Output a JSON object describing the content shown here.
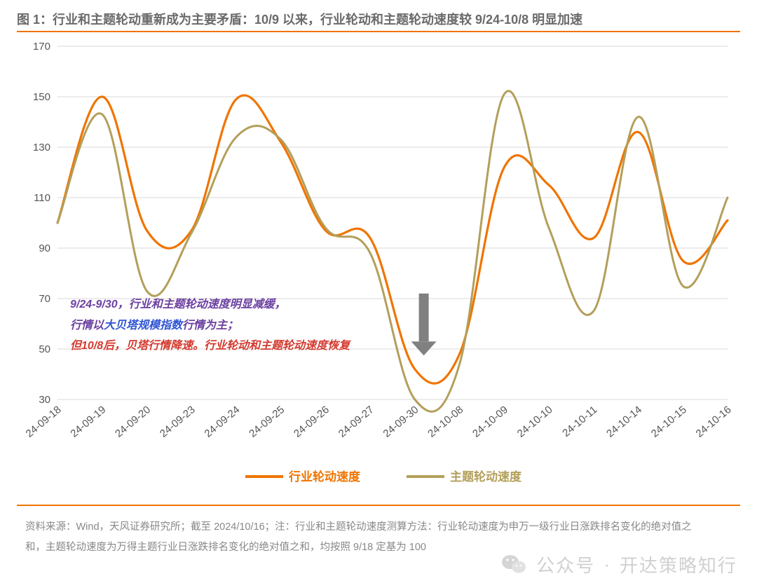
{
  "title": "图 1：行业和主题轮动重新成为主要矛盾：10/9 以来，行业轮动和主题轮动速度较 9/24-10/8 明显加速",
  "title_color": "#6a6a6a",
  "accent_color": "#f07400",
  "chart": {
    "type": "line",
    "series": [
      {
        "name": "行业轮动速度",
        "color": "#f07400",
        "line_width": 3.2,
        "values": [
          100,
          150,
          97,
          97,
          149,
          132,
          97,
          94,
          42,
          48,
          122,
          115,
          94,
          136,
          85,
          101
        ]
      },
      {
        "name": "主题轮动速度",
        "color": "#b39f5a",
        "line_width": 3.0,
        "values": [
          100,
          143,
          73,
          96,
          134,
          133,
          98,
          88,
          30,
          44,
          151,
          98,
          65,
          142,
          75,
          110
        ]
      }
    ],
    "x_labels": [
      "24-09-18",
      "24-09-19",
      "24-09-20",
      "24-09-23",
      "24-09-24",
      "24-09-25",
      "24-09-26",
      "24-09-27",
      "24-09-30",
      "24-10-08",
      "24-10-09",
      "24-10-10",
      "24-10-11",
      "24-10-14",
      "24-10-15",
      "24-10-16"
    ],
    "ylim": [
      30,
      170
    ],
    "ytick_step": 20,
    "background_color": "#ffffff",
    "grid_color": "#d9d9d9",
    "grid_width": 1,
    "axis_text_color": "#555555",
    "axis_font_size": 15,
    "x_tick_rotation": -40,
    "legend": {
      "position": "bottom-center",
      "font_size": 17,
      "font_weight": "bold"
    },
    "annotation_arrow": {
      "x_index": 8.2,
      "y_from": 72,
      "y_to": 48,
      "color": "#808080"
    }
  },
  "annotations": {
    "line1": {
      "text": "9/24-9/30，行业和主题轮动速度明显减缓，",
      "color": "#6b3fa0"
    },
    "line2_prefix": {
      "text": "行情以",
      "color": "#6b3fa0"
    },
    "line2_emph": {
      "text": "大贝塔规模指数",
      "color": "#2f55d4"
    },
    "line2_suffix": {
      "text": "行情为主；",
      "color": "#6b3fa0"
    },
    "line3": {
      "text": "但10/8后，贝塔行情降速。行业轮动和主题轮动速度恢复",
      "color": "#d43a2f"
    }
  },
  "footnote_line1": "资料来源：Wind，天风证券研究所；截至 2024/10/16；注：行业和主题轮动速度测算方法：行业轮动速度为申万一级行业日涨跌排名变化的绝对值之",
  "footnote_line2": "和，主题轮动速度为万得主题行业日涨跌排名变化的绝对值之和，均按照 9/18 定基为 100",
  "watermark": {
    "label": "公众号",
    "sep": "·",
    "name": "开达策略知行",
    "color": "rgba(120,120,120,0.35)"
  }
}
